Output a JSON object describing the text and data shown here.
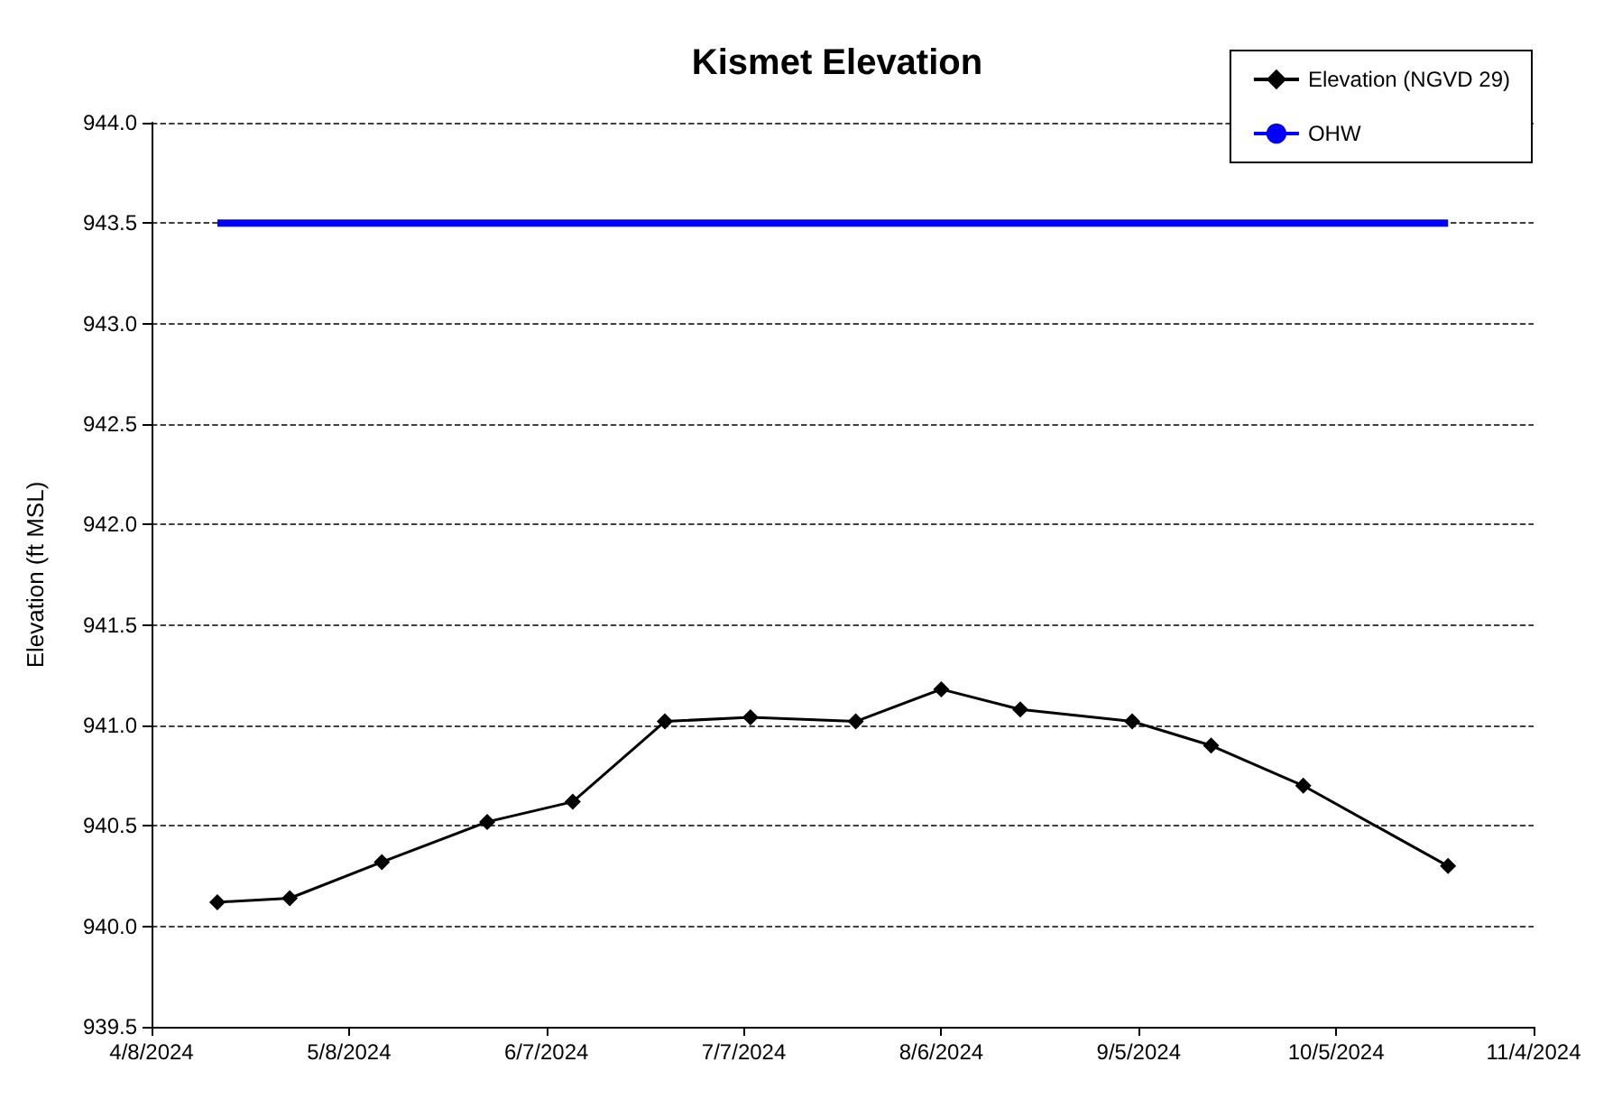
{
  "chart_data": {
    "type": "line",
    "title": "Kismet Elevation",
    "ylabel": "Elevation (ft MSL)",
    "series": [
      {
        "name": "Elevation (NGVD 29)",
        "color": "#000000",
        "marker": "diamond",
        "line_style": "solid",
        "x": [
          "2024-04-18",
          "2024-04-29",
          "2024-05-13",
          "2024-05-29",
          "2024-06-11",
          "2024-06-25",
          "2024-07-08",
          "2024-07-24",
          "2024-08-06",
          "2024-08-18",
          "2024-09-04",
          "2024-09-16",
          "2024-09-30",
          "2024-10-22"
        ],
        "values": [
          940.12,
          940.14,
          940.32,
          940.52,
          940.62,
          941.02,
          941.04,
          941.02,
          941.18,
          941.08,
          941.02,
          940.9,
          940.7,
          940.3
        ]
      },
      {
        "name": "OHW",
        "color": "#0000ff",
        "marker": "none",
        "line_style": "solid",
        "x": [
          "2024-04-18",
          "2024-10-22"
        ],
        "values": [
          943.5,
          943.5
        ]
      }
    ],
    "xlim": [
      "2024-04-08",
      "2024-11-04"
    ],
    "xticks": [
      {
        "value": "2024-04-08",
        "label": "4/8/2024"
      },
      {
        "value": "2024-05-08",
        "label": "5/8/2024"
      },
      {
        "value": "2024-06-07",
        "label": "6/7/2024"
      },
      {
        "value": "2024-07-07",
        "label": "7/7/2024"
      },
      {
        "value": "2024-08-06",
        "label": "8/6/2024"
      },
      {
        "value": "2024-09-05",
        "label": "9/5/2024"
      },
      {
        "value": "2024-10-05",
        "label": "10/5/2024"
      },
      {
        "value": "2024-11-04",
        "label": "11/4/2024"
      }
    ],
    "ylim": [
      939.5,
      944
    ],
    "yticks": [
      {
        "value": 939.5,
        "label": "939.5"
      },
      {
        "value": 940,
        "label": "940.0"
      },
      {
        "value": 940.5,
        "label": "940.5"
      },
      {
        "value": 941,
        "label": "941.0"
      },
      {
        "value": 941.5,
        "label": "941.5"
      },
      {
        "value": 942,
        "label": "942.0"
      },
      {
        "value": 942.5,
        "label": "942.5"
      },
      {
        "value": 943,
        "label": "943.0"
      },
      {
        "value": 943.5,
        "label": "943.5"
      },
      {
        "value": 944,
        "label": "944.0"
      }
    ],
    "grid": "y",
    "legend": "top right"
  }
}
